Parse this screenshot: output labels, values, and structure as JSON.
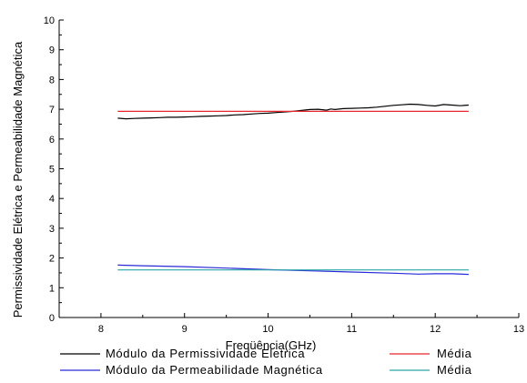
{
  "chart_data": {
    "type": "line",
    "title": "",
    "xlabel": "Freqüência(GHz)",
    "ylabel": "Permissividade Elétrica e Permeabilidade Magnética",
    "xlim": [
      7.5,
      13
    ],
    "ylim": [
      0,
      10
    ],
    "xticks": [
      8,
      9,
      10,
      11,
      12,
      13
    ],
    "yticks": [
      0,
      1,
      2,
      3,
      4,
      5,
      6,
      7,
      8,
      9,
      10
    ],
    "xtick_labels": [
      "8",
      "9",
      "10",
      "11",
      "12",
      "13"
    ],
    "ytick_labels": [
      "0",
      "1",
      "2",
      "3",
      "4",
      "5",
      "6",
      "7",
      "8",
      "9",
      "10"
    ],
    "grid": false,
    "legend_position": "bottom",
    "series": [
      {
        "name": "Módulo da Permissividade Eletrica",
        "color": "#000000",
        "x": [
          8.2,
          8.3,
          8.4,
          8.5,
          8.6,
          8.7,
          8.8,
          8.9,
          9.0,
          9.1,
          9.2,
          9.3,
          9.4,
          9.5,
          9.6,
          9.7,
          9.8,
          9.9,
          10.0,
          10.1,
          10.2,
          10.3,
          10.4,
          10.5,
          10.6,
          10.7,
          10.75,
          10.8,
          10.9,
          11.0,
          11.1,
          11.2,
          11.3,
          11.4,
          11.5,
          11.6,
          11.7,
          11.8,
          11.9,
          12.0,
          12.1,
          12.2,
          12.3,
          12.4
        ],
        "y": [
          6.7,
          6.68,
          6.69,
          6.7,
          6.71,
          6.72,
          6.73,
          6.73,
          6.74,
          6.75,
          6.76,
          6.77,
          6.78,
          6.79,
          6.81,
          6.82,
          6.84,
          6.86,
          6.87,
          6.89,
          6.91,
          6.93,
          6.96,
          6.99,
          7.0,
          6.97,
          7.01,
          6.99,
          7.02,
          7.03,
          7.04,
          7.05,
          7.07,
          7.1,
          7.13,
          7.15,
          7.17,
          7.16,
          7.13,
          7.11,
          7.16,
          7.14,
          7.12,
          7.14
        ]
      },
      {
        "name": "Média",
        "color": "#e8272a",
        "x": [
          8.2,
          12.4
        ],
        "y": [
          6.93,
          6.93
        ]
      },
      {
        "name": "Módulo da Permeabilidade Magnética",
        "color": "#2a2ad8",
        "x": [
          8.2,
          8.5,
          9.0,
          9.5,
          10.0,
          10.5,
          11.0,
          11.5,
          11.8,
          12.0,
          12.2,
          12.4
        ],
        "y": [
          1.76,
          1.74,
          1.71,
          1.66,
          1.61,
          1.57,
          1.53,
          1.49,
          1.46,
          1.47,
          1.47,
          1.45
        ]
      },
      {
        "name": "Média",
        "color": "#2aa6a6",
        "x": [
          8.2,
          12.4
        ],
        "y": [
          1.6,
          1.6
        ]
      }
    ]
  }
}
